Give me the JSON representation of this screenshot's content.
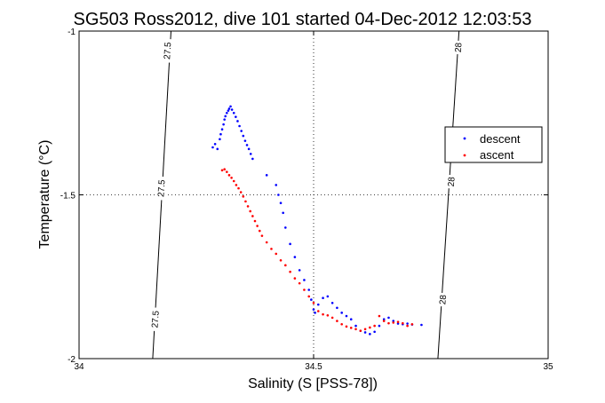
{
  "chart_data": {
    "type": "scatter",
    "title": "SG503 Ross2012, dive 101 started 04-Dec-2012 12:03:53",
    "xlabel": "Salinity (S [PSS-78])",
    "ylabel": "Temperature (°C)",
    "xlim": [
      34,
      35
    ],
    "ylim": [
      -2,
      -1
    ],
    "xticks": [
      "34",
      "34.5",
      "35"
    ],
    "yticks": [
      "-1",
      "-1.5",
      "-2"
    ],
    "grid": "dotted at 34.5 and -1.5",
    "legend_position": "right",
    "isopycnals": [
      {
        "label": "27.5",
        "points": [
          [
            34.157,
            -2.0
          ],
          [
            34.196,
            -1.0
          ]
        ]
      },
      {
        "label": "28",
        "points": [
          [
            34.765,
            -2.0
          ],
          [
            34.81,
            -1.0
          ]
        ]
      }
    ],
    "contour_labels": [
      {
        "text": "27.5",
        "x": 34.188,
        "y": -1.06
      },
      {
        "text": "27.5",
        "x": 34.175,
        "y": -1.48
      },
      {
        "text": "27.5",
        "x": 34.162,
        "y": -1.88
      },
      {
        "text": "28",
        "x": 34.808,
        "y": -1.05
      },
      {
        "text": "28",
        "x": 34.793,
        "y": -1.46
      },
      {
        "text": "28",
        "x": 34.775,
        "y": -1.82
      }
    ],
    "series": [
      {
        "name": "descent",
        "color": "#0000ff",
        "points": [
          [
            34.285,
            -1.355
          ],
          [
            34.29,
            -1.345
          ],
          [
            34.295,
            -1.36
          ],
          [
            34.3,
            -1.33
          ],
          [
            34.302,
            -1.315
          ],
          [
            34.305,
            -1.3
          ],
          [
            34.308,
            -1.285
          ],
          [
            34.31,
            -1.27
          ],
          [
            34.312,
            -1.26
          ],
          [
            34.315,
            -1.25
          ],
          [
            34.318,
            -1.243
          ],
          [
            34.32,
            -1.237
          ],
          [
            34.323,
            -1.23
          ],
          [
            34.326,
            -1.24
          ],
          [
            34.33,
            -1.25
          ],
          [
            34.334,
            -1.262
          ],
          [
            34.338,
            -1.275
          ],
          [
            34.342,
            -1.29
          ],
          [
            34.346,
            -1.305
          ],
          [
            34.35,
            -1.32
          ],
          [
            34.354,
            -1.335
          ],
          [
            34.358,
            -1.348
          ],
          [
            34.362,
            -1.36
          ],
          [
            34.366,
            -1.375
          ],
          [
            34.37,
            -1.39
          ],
          [
            34.4,
            -1.44
          ],
          [
            34.42,
            -1.47
          ],
          [
            34.425,
            -1.5
          ],
          [
            34.43,
            -1.525
          ],
          [
            34.435,
            -1.555
          ],
          [
            34.44,
            -1.6
          ],
          [
            34.45,
            -1.65
          ],
          [
            34.46,
            -1.69
          ],
          [
            34.47,
            -1.73
          ],
          [
            34.48,
            -1.76
          ],
          [
            34.49,
            -1.79
          ],
          [
            34.495,
            -1.82
          ],
          [
            34.5,
            -1.85
          ],
          [
            34.503,
            -1.86
          ],
          [
            34.51,
            -1.835
          ],
          [
            34.52,
            -1.815
          ],
          [
            34.53,
            -1.81
          ],
          [
            34.54,
            -1.83
          ],
          [
            34.55,
            -1.845
          ],
          [
            34.56,
            -1.86
          ],
          [
            34.57,
            -1.87
          ],
          [
            34.58,
            -1.88
          ],
          [
            34.59,
            -1.9
          ],
          [
            34.6,
            -1.915
          ],
          [
            34.61,
            -1.92
          ],
          [
            34.62,
            -1.925
          ],
          [
            34.63,
            -1.918
          ],
          [
            34.64,
            -1.9
          ],
          [
            34.65,
            -1.88
          ],
          [
            34.66,
            -1.875
          ],
          [
            34.67,
            -1.885
          ],
          [
            34.68,
            -1.893
          ],
          [
            34.69,
            -1.895
          ],
          [
            34.7,
            -1.893
          ],
          [
            34.71,
            -1.896
          ],
          [
            34.73,
            -1.897
          ]
        ]
      },
      {
        "name": "ascent",
        "color": "#ff0000",
        "points": [
          [
            34.305,
            -1.425
          ],
          [
            34.31,
            -1.422
          ],
          [
            34.315,
            -1.43
          ],
          [
            34.32,
            -1.44
          ],
          [
            34.325,
            -1.448
          ],
          [
            34.33,
            -1.458
          ],
          [
            34.335,
            -1.47
          ],
          [
            34.34,
            -1.48
          ],
          [
            34.345,
            -1.492
          ],
          [
            34.35,
            -1.505
          ],
          [
            34.355,
            -1.52
          ],
          [
            34.36,
            -1.535
          ],
          [
            34.365,
            -1.55
          ],
          [
            34.37,
            -1.565
          ],
          [
            34.375,
            -1.58
          ],
          [
            34.38,
            -1.595
          ],
          [
            34.385,
            -1.61
          ],
          [
            34.39,
            -1.625
          ],
          [
            34.4,
            -1.645
          ],
          [
            34.41,
            -1.665
          ],
          [
            34.42,
            -1.68
          ],
          [
            34.43,
            -1.7
          ],
          [
            34.44,
            -1.715
          ],
          [
            34.45,
            -1.735
          ],
          [
            34.46,
            -1.755
          ],
          [
            34.47,
            -1.77
          ],
          [
            34.48,
            -1.79
          ],
          [
            34.49,
            -1.81
          ],
          [
            34.5,
            -1.83
          ],
          [
            34.51,
            -1.855
          ],
          [
            34.52,
            -1.865
          ],
          [
            34.53,
            -1.868
          ],
          [
            34.54,
            -1.875
          ],
          [
            34.55,
            -1.885
          ],
          [
            34.56,
            -1.895
          ],
          [
            34.57,
            -1.902
          ],
          [
            34.58,
            -1.906
          ],
          [
            34.59,
            -1.91
          ],
          [
            34.6,
            -1.915
          ],
          [
            34.61,
            -1.91
          ],
          [
            34.62,
            -1.905
          ],
          [
            34.63,
            -1.9
          ],
          [
            34.64,
            -1.87
          ],
          [
            34.65,
            -1.885
          ],
          [
            34.66,
            -1.892
          ],
          [
            34.67,
            -1.89
          ],
          [
            34.68,
            -1.888
          ],
          [
            34.69,
            -1.892
          ],
          [
            34.7,
            -1.9
          ],
          [
            34.71,
            -1.895
          ]
        ]
      }
    ]
  }
}
